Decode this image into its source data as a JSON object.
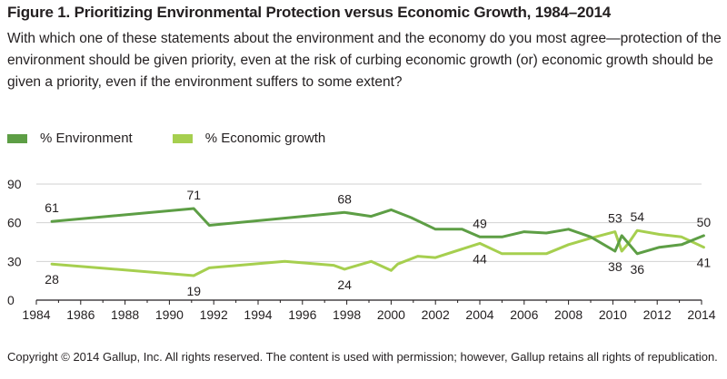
{
  "header": {
    "title": "Figure 1. Prioritizing Environmental Protection versus Economic Growth, 1984–2014",
    "question": "With which one of these statements about the environment and the economy do you most agree—protection of the environment should be given priority, even at the risk of curbing economic growth (or) economic growth should be given a priority, even if the environment suffers to some extent?"
  },
  "colors": {
    "environment": "#5d9e45",
    "economic": "#a6cf4f",
    "grid": "#d2d2d2",
    "axis": "#231f20"
  },
  "footer": {
    "copyright": "Copyright © 2014 Gallup, Inc. All rights reserved. The content is used with permission; however, Gallup retains all rights of republication."
  },
  "chart_data": {
    "type": "line",
    "title": "Figure 1. Prioritizing Environmental Protection versus Economic Growth, 1984–2014",
    "xlabel": "",
    "ylabel": "",
    "xlim": [
      1984,
      2014
    ],
    "ylim": [
      0,
      90
    ],
    "xticks": [
      "1984",
      "1986",
      "1988",
      "1990",
      "1992",
      "1994",
      "1996",
      "1998",
      "2000",
      "2002",
      "2004",
      "2006",
      "2008",
      "2010",
      "2012",
      "2014"
    ],
    "yticks": [
      "0",
      "30",
      "60",
      "90"
    ],
    "grid": true,
    "legend_position": "top-left",
    "series": [
      {
        "name": "% Environment",
        "color": "#5d9e45",
        "x": [
          1984.7,
          1991.1,
          1991.8,
          1997.9,
          1999.1,
          2000.0,
          2000.9,
          2002.0,
          2003.2,
          2004.0,
          2005.0,
          2006.0,
          2007.0,
          2008.0,
          2009.0,
          2010.1,
          2010.4,
          2011.1,
          2012.1,
          2013.1,
          2014.1
        ],
        "y": [
          61,
          71,
          58,
          68,
          65,
          70,
          64,
          55,
          55,
          49,
          49,
          53,
          52,
          55,
          49,
          38,
          50,
          36,
          41,
          43,
          50
        ]
      },
      {
        "name": "% Economic growth",
        "color": "#a6cf4f",
        "x": [
          1984.7,
          1991.1,
          1991.8,
          1995.2,
          1997.4,
          1997.9,
          1999.1,
          2000.0,
          2000.3,
          2001.2,
          2002.0,
          2004.0,
          2005.0,
          2006.0,
          2007.0,
          2008.0,
          2009.0,
          2010.1,
          2010.4,
          2010.7,
          2011.1,
          2012.1,
          2013.1,
          2014.1
        ],
        "y": [
          28,
          19,
          25,
          30,
          27,
          24,
          30,
          23,
          28,
          34,
          33,
          44,
          36,
          36,
          36,
          43,
          48,
          53,
          38,
          44,
          54,
          51,
          49,
          41
        ]
      }
    ],
    "annotations": [
      {
        "text": "61",
        "series": 0,
        "x": 1984.7,
        "y": 61,
        "pos": "above"
      },
      {
        "text": "71",
        "series": 0,
        "x": 1991.1,
        "y": 71,
        "pos": "above"
      },
      {
        "text": "68",
        "series": 0,
        "x": 1997.9,
        "y": 68,
        "pos": "above"
      },
      {
        "text": "49",
        "series": 0,
        "x": 2004.0,
        "y": 49,
        "pos": "above"
      },
      {
        "text": "38",
        "series": 0,
        "x": 2010.1,
        "y": 38,
        "pos": "below"
      },
      {
        "text": "50",
        "series": 0,
        "x": 2014.1,
        "y": 50,
        "pos": "above"
      },
      {
        "text": "28",
        "series": 1,
        "x": 1984.7,
        "y": 28,
        "pos": "below"
      },
      {
        "text": "19",
        "series": 1,
        "x": 1991.1,
        "y": 19,
        "pos": "below"
      },
      {
        "text": "24",
        "series": 1,
        "x": 1997.9,
        "y": 24,
        "pos": "below"
      },
      {
        "text": "44",
        "series": 1,
        "x": 2004.0,
        "y": 44,
        "pos": "below"
      },
      {
        "text": "53",
        "series": 1,
        "x": 2010.1,
        "y": 53,
        "pos": "above"
      },
      {
        "text": "54",
        "series": 1,
        "x": 2011.1,
        "y": 54,
        "pos": "above"
      },
      {
        "text": "36",
        "series": 0,
        "x": 2011.1,
        "y": 36,
        "pos": "below"
      },
      {
        "text": "41",
        "series": 1,
        "x": 2014.1,
        "y": 41,
        "pos": "below"
      }
    ]
  }
}
